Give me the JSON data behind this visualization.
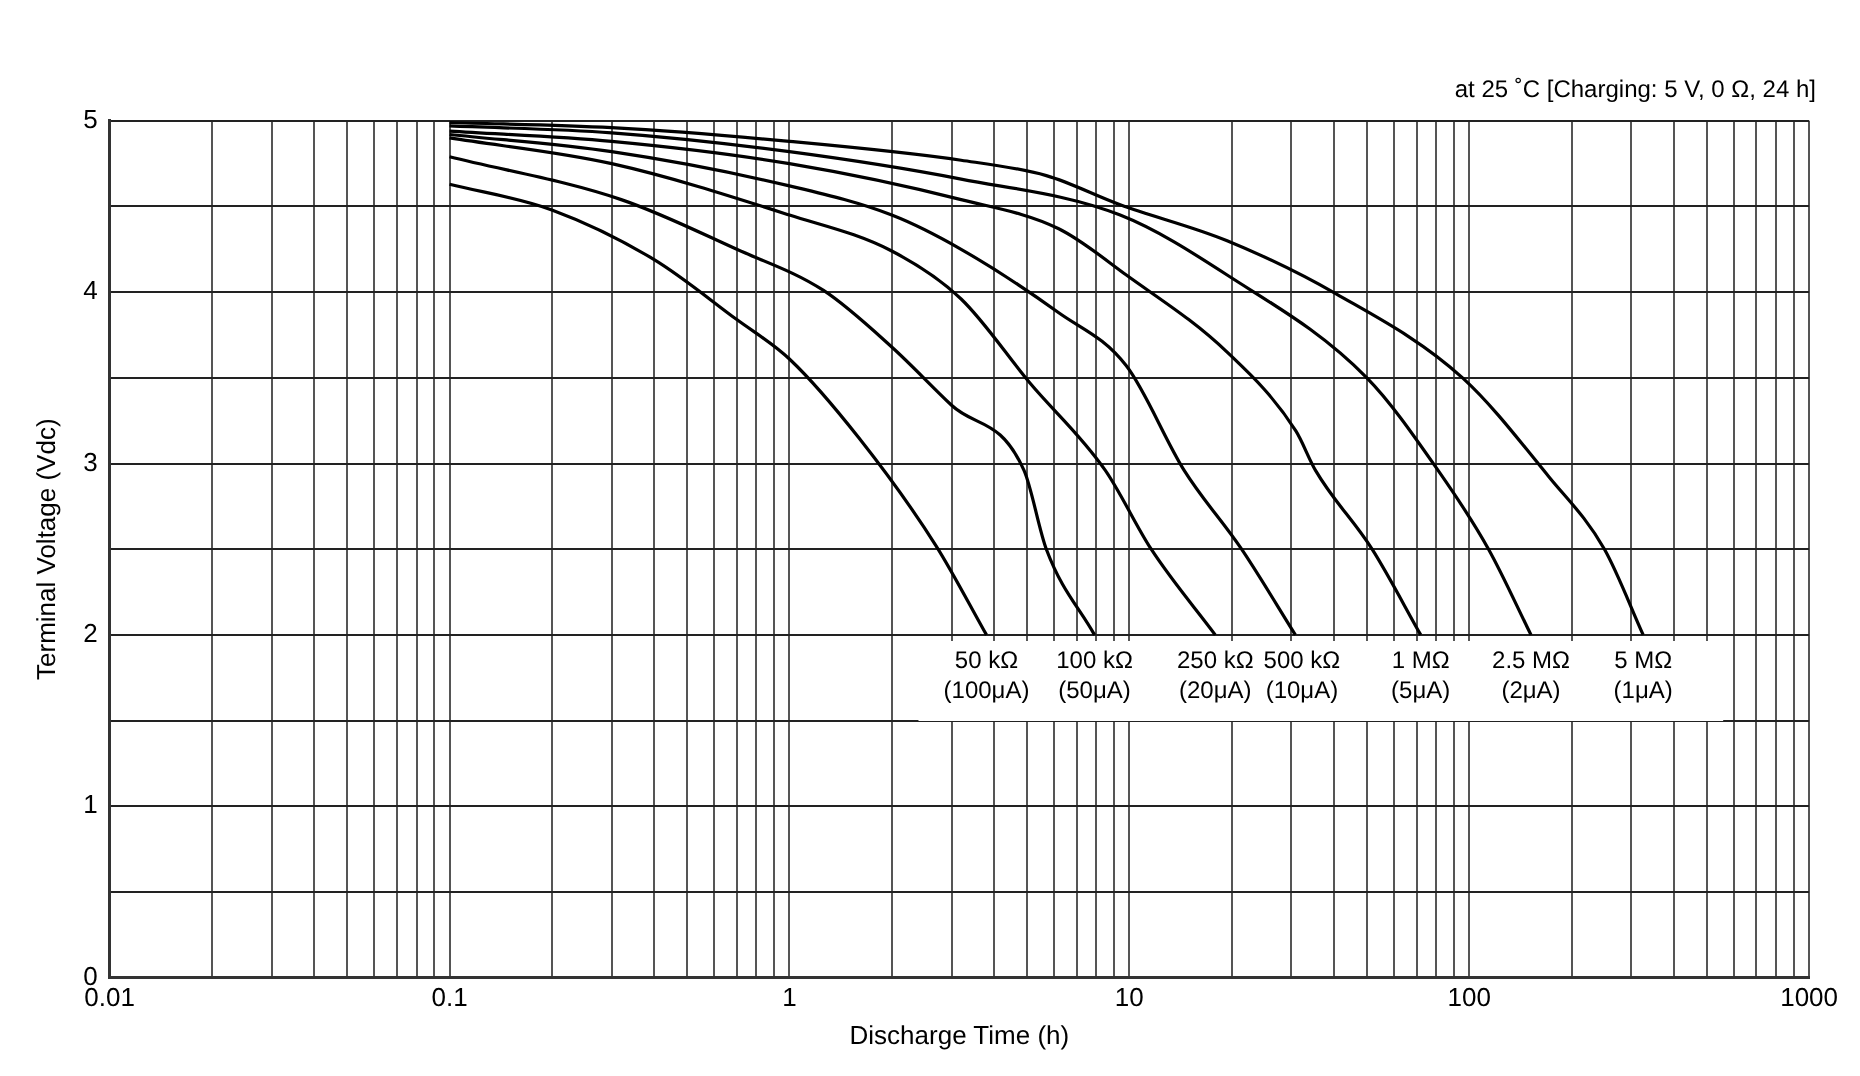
{
  "chart_data": {
    "type": "line",
    "xlabel": "Discharge Time (h)",
    "ylabel": "Terminal Voltage (Vdc)",
    "annotations": [
      "at 25 ˚C [Charging: 5 V, 0 Ω, 24 h]"
    ],
    "log": "x",
    "grid": true,
    "legend": false,
    "marker": "none",
    "line_style": "solid",
    "xlim": [
      0.01,
      1000
    ],
    "ylim": [
      0,
      5
    ],
    "xticks": [
      0.01,
      {
        "value": 0.02,
        "label": null
      },
      {
        "value": 0.03,
        "label": null
      },
      {
        "value": 0.04,
        "label": null
      },
      {
        "value": 0.05,
        "label": null
      },
      {
        "value": 0.06,
        "label": null
      },
      {
        "value": 0.07,
        "label": null
      },
      {
        "value": 0.08,
        "label": null
      },
      {
        "value": 0.09,
        "label": null
      },
      0.1,
      {
        "value": 0.2,
        "label": null
      },
      {
        "value": 0.3,
        "label": null
      },
      {
        "value": 0.4,
        "label": null
      },
      {
        "value": 0.5,
        "label": null
      },
      {
        "value": 0.6,
        "label": null
      },
      {
        "value": 0.7,
        "label": null
      },
      {
        "value": 0.8,
        "label": null
      },
      {
        "value": 0.9,
        "label": null
      },
      1,
      {
        "value": 2,
        "label": null
      },
      {
        "value": 3,
        "label": null
      },
      {
        "value": 4,
        "label": null
      },
      {
        "value": 5,
        "label": null
      },
      {
        "value": 6,
        "label": null
      },
      {
        "value": 7,
        "label": null
      },
      {
        "value": 8,
        "label": null
      },
      {
        "value": 9,
        "label": null
      },
      10,
      {
        "value": 20,
        "label": null
      },
      {
        "value": 30,
        "label": null
      },
      {
        "value": 40,
        "label": null
      },
      {
        "value": 50,
        "label": null
      },
      {
        "value": 60,
        "label": null
      },
      {
        "value": 70,
        "label": null
      },
      {
        "value": 80,
        "label": null
      },
      {
        "value": 90,
        "label": null
      },
      100,
      {
        "value": 200,
        "label": null
      },
      {
        "value": 300,
        "label": null
      },
      {
        "value": 400,
        "label": null
      },
      {
        "value": 500,
        "label": null
      },
      {
        "value": 600,
        "label": null
      },
      {
        "value": 700,
        "label": null
      },
      {
        "value": 800,
        "label": null
      },
      {
        "value": 900,
        "label": null
      },
      1000
    ],
    "yticks": [
      0,
      {
        "value": 0.5,
        "label": null
      },
      1,
      {
        "value": 1.5,
        "label": null
      },
      2,
      {
        "value": 2.5,
        "label": null
      },
      3,
      {
        "value": 3.5,
        "label": null
      },
      4,
      {
        "value": 4.5,
        "label": null
      },
      5
    ],
    "series": [
      {
        "name": "50 kΩ (100μA)",
        "color": "#000000",
        "x": [
          0.1,
          0.2,
          0.4,
          0.7,
          1.0,
          1.6,
          2.7,
          3.8
        ],
        "values": [
          4.63,
          4.48,
          4.19,
          3.84,
          3.61,
          3.15,
          2.52,
          2.0
        ]
      },
      {
        "name": "100 kΩ (50μA)",
        "color": "#000000",
        "x": [
          0.1,
          0.32,
          0.7,
          1.26,
          2.0,
          3.0,
          4.9,
          5.7,
          7.9
        ],
        "values": [
          4.79,
          4.54,
          4.25,
          4.01,
          3.68,
          3.34,
          2.96,
          2.5,
          2.0
        ]
      },
      {
        "name": "250 kΩ (20μA)",
        "color": "#000000",
        "x": [
          0.1,
          0.3,
          1.0,
          2.0,
          3.2,
          5.1,
          8.5,
          11.6,
          17.9
        ],
        "values": [
          4.9,
          4.75,
          4.45,
          4.24,
          3.96,
          3.47,
          2.96,
          2.5,
          2.0
        ]
      },
      {
        "name": "500 kΩ (10μA)",
        "color": "#000000",
        "x": [
          0.1,
          0.3,
          1.0,
          2.0,
          3.2,
          6.2,
          9.8,
          14.5,
          21.4,
          30.8
        ],
        "values": [
          4.92,
          4.82,
          4.62,
          4.45,
          4.25,
          3.88,
          3.57,
          2.96,
          2.5,
          2.0
        ]
      },
      {
        "name": "1 MΩ (5μA)",
        "color": "#000000",
        "x": [
          0.1,
          0.3,
          1.0,
          3.2,
          6.2,
          9.8,
          19.4,
          30.9,
          35.3,
          51.8,
          72
        ],
        "values": [
          4.94,
          4.88,
          4.75,
          4.54,
          4.37,
          4.1,
          3.65,
          3.19,
          2.96,
          2.5,
          2.0
        ]
      },
      {
        "name": "2.5 MΩ (2μA)",
        "color": "#000000",
        "x": [
          0.1,
          0.3,
          1.0,
          3.2,
          9.4,
          19.4,
          50,
          81,
          114,
          152
        ],
        "values": [
          4.97,
          4.93,
          4.82,
          4.66,
          4.45,
          4.1,
          3.5,
          2.96,
          2.5,
          2.0
        ]
      },
      {
        "name": "5 MΩ (1μA)",
        "color": "#000000",
        "x": [
          0.1,
          0.3,
          1.0,
          3.2,
          5.7,
          9.4,
          19.4,
          40.6,
          95.6,
          172,
          250,
          325
        ],
        "values": [
          4.99,
          4.96,
          4.88,
          4.77,
          4.68,
          4.51,
          4.3,
          3.99,
          3.5,
          2.92,
          2.5,
          2.0
        ]
      }
    ]
  }
}
